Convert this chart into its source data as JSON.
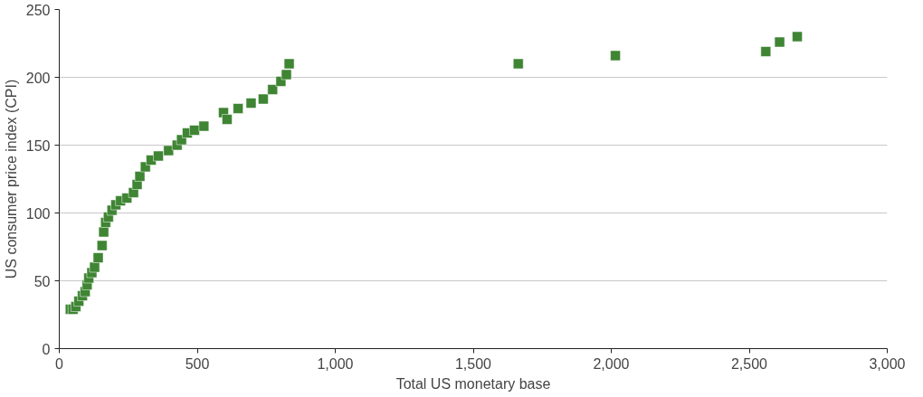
{
  "chart_data": {
    "type": "scatter",
    "xlabel": "Total US monetary base",
    "ylabel": "US consumer price index (CPI)",
    "xlim": [
      0,
      3000
    ],
    "xticks": [
      0,
      {
        "value": 500,
        "label": "500"
      },
      {
        "value": 1000,
        "label": "1,000"
      },
      {
        "value": 1500,
        "label": "1,500"
      },
      {
        "value": 2000,
        "label": "2,000"
      },
      {
        "value": 2500,
        "label": "2,500"
      },
      {
        "value": 3000,
        "label": "3,000"
      }
    ],
    "ylim": [
      0,
      250
    ],
    "yticks": [
      0,
      50,
      100,
      150,
      200,
      250
    ],
    "grid": "y",
    "marker": "square",
    "series": [
      {
        "color": "#3f8534",
        "x": [
          40,
          50,
          60,
          71,
          84,
          94,
          101,
          107,
          118,
          128,
          141,
          155,
          161,
          168,
          178,
          191,
          205,
          222,
          245,
          269,
          282,
          292,
          312,
          333,
          359,
          396,
          427,
          443,
          464,
          490,
          524,
          595,
          608,
          648,
          695,
          739,
          773,
          803,
          823,
          833,
          1663,
          2015,
          2560,
          2610,
          2674
        ],
        "values": [
          29,
          29,
          31,
          35,
          39,
          42,
          47,
          52,
          56,
          60,
          67,
          76,
          86,
          93,
          97,
          102,
          106,
          109,
          111,
          115,
          121,
          127,
          134,
          139,
          142,
          146,
          150,
          154,
          159,
          161,
          164,
          174,
          169,
          177,
          181,
          184,
          191,
          197,
          202,
          210,
          210,
          216,
          219,
          226,
          230
        ]
      }
    ]
  }
}
